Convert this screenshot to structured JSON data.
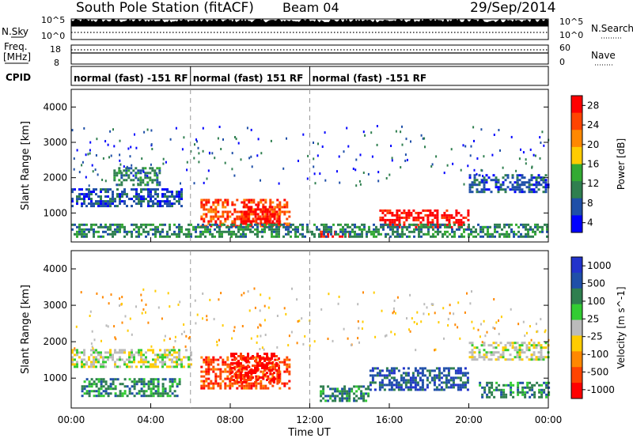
{
  "header": {
    "station": "South Pole Station (fitACF)",
    "beam": "Beam 04",
    "date": "29/Sep/2014"
  },
  "left_labels": {
    "nsky": "N.Sky",
    "freq_line1": "Freq.",
    "freq_line2": "[MHz]",
    "cpid": "CPID"
  },
  "right_labels": {
    "nsearch": "N.Search",
    "nave": "Nave"
  },
  "noise_axis": {
    "left_ticks": [
      "10^5",
      "10^0"
    ],
    "right_ticks": [
      "10^5",
      "10^0"
    ]
  },
  "freq_axis": {
    "left_ticks": [
      "18",
      "8"
    ],
    "right_ticks": [
      "60",
      "0"
    ]
  },
  "cpid_segments": [
    {
      "label": "normal (fast) -151 RF",
      "start_hour": 0,
      "end_hour": 6.0
    },
    {
      "label": "normal (fast) 151 RF",
      "start_hour": 6.0,
      "end_hour": 12.0
    },
    {
      "label": "normal (fast) -151 RF",
      "start_hour": 12.0,
      "end_hour": 24.0
    }
  ],
  "colors": {
    "power": [
      "#0000ff",
      "#1f4fa8",
      "#2f7f4f",
      "#33aa33",
      "#ffcc00",
      "#ff8800",
      "#ff4400",
      "#ff0000"
    ],
    "velocity": [
      "#ff0000",
      "#ff4400",
      "#ff8800",
      "#ffcc00",
      "#bbbbbb",
      "#33cc33",
      "#2f7f4f",
      "#1f4fa8",
      "#2233cc"
    ]
  },
  "chart_data": [
    {
      "type": "heatmap",
      "name": "Power",
      "ylabel": "Slant Range [km]",
      "xlim": [
        0,
        24
      ],
      "ylim": [
        180,
        4500
      ],
      "yticks": [
        "1000",
        "2000",
        "3000",
        "4000"
      ],
      "xticks": [
        "00:00",
        "04:00",
        "08:00",
        "12:00",
        "16:00",
        "20:00",
        "00:00"
      ],
      "colorbar": {
        "label": "Power [dB]",
        "ticks": [
          "28",
          "24",
          "20",
          "16",
          "12",
          "8",
          "4"
        ],
        "range": [
          0,
          30
        ]
      },
      "bands": [
        {
          "x": [
            0.0,
            5.5
          ],
          "y": [
            1200,
            1700
          ],
          "level": 1
        },
        {
          "x": [
            2.0,
            4.5
          ],
          "y": [
            1800,
            2300
          ],
          "level": 2
        },
        {
          "x": [
            6.5,
            11.0
          ],
          "y": [
            600,
            1400
          ],
          "level": 6
        },
        {
          "x": [
            8.5,
            10.5
          ],
          "y": [
            700,
            1200
          ],
          "level": 7
        },
        {
          "x": [
            12.5,
            14.0
          ],
          "y": [
            300,
            500
          ],
          "level": 7
        },
        {
          "x": [
            15.5,
            20.0
          ],
          "y": [
            600,
            1100
          ],
          "level": 7
        },
        {
          "x": [
            20.0,
            24.0
          ],
          "y": [
            1600,
            2100
          ],
          "level": 1
        },
        {
          "x": [
            0.0,
            24.0
          ],
          "y": [
            300,
            700
          ],
          "level": 2
        }
      ]
    },
    {
      "type": "heatmap",
      "name": "Velocity",
      "ylabel": "Slant Range [km]",
      "xlabel": "Time UT",
      "xlim": [
        0,
        24
      ],
      "ylim": [
        180,
        4500
      ],
      "yticks": [
        "1000",
        "2000",
        "3000",
        "4000"
      ],
      "xticks": [
        "00:00",
        "04:00",
        "08:00",
        "12:00",
        "16:00",
        "20:00",
        "00:00"
      ],
      "colorbar": {
        "label": "Velocity [m s^-1]",
        "ticks": [
          "1000",
          "500",
          "100",
          "25",
          "-25",
          "-100",
          "-500",
          "-1000"
        ],
        "range": [
          -1000,
          1000
        ]
      },
      "bands": [
        {
          "x": [
            0.0,
            6.0
          ],
          "y": [
            1300,
            1800
          ],
          "level": 4
        },
        {
          "x": [
            0.5,
            5.5
          ],
          "y": [
            500,
            1000
          ],
          "level": 6
        },
        {
          "x": [
            6.5,
            11.0
          ],
          "y": [
            700,
            1600
          ],
          "level": 1
        },
        {
          "x": [
            8.0,
            10.5
          ],
          "y": [
            900,
            1700
          ],
          "level": 0
        },
        {
          "x": [
            12.5,
            15.0
          ],
          "y": [
            400,
            800
          ],
          "level": 6
        },
        {
          "x": [
            15.0,
            20.0
          ],
          "y": [
            700,
            1300
          ],
          "level": 7
        },
        {
          "x": [
            20.0,
            24.0
          ],
          "y": [
            1500,
            2000
          ],
          "level": 4
        },
        {
          "x": [
            20.5,
            24.0
          ],
          "y": [
            500,
            900
          ],
          "level": 6
        }
      ]
    }
  ],
  "xlabel": "Time UT"
}
